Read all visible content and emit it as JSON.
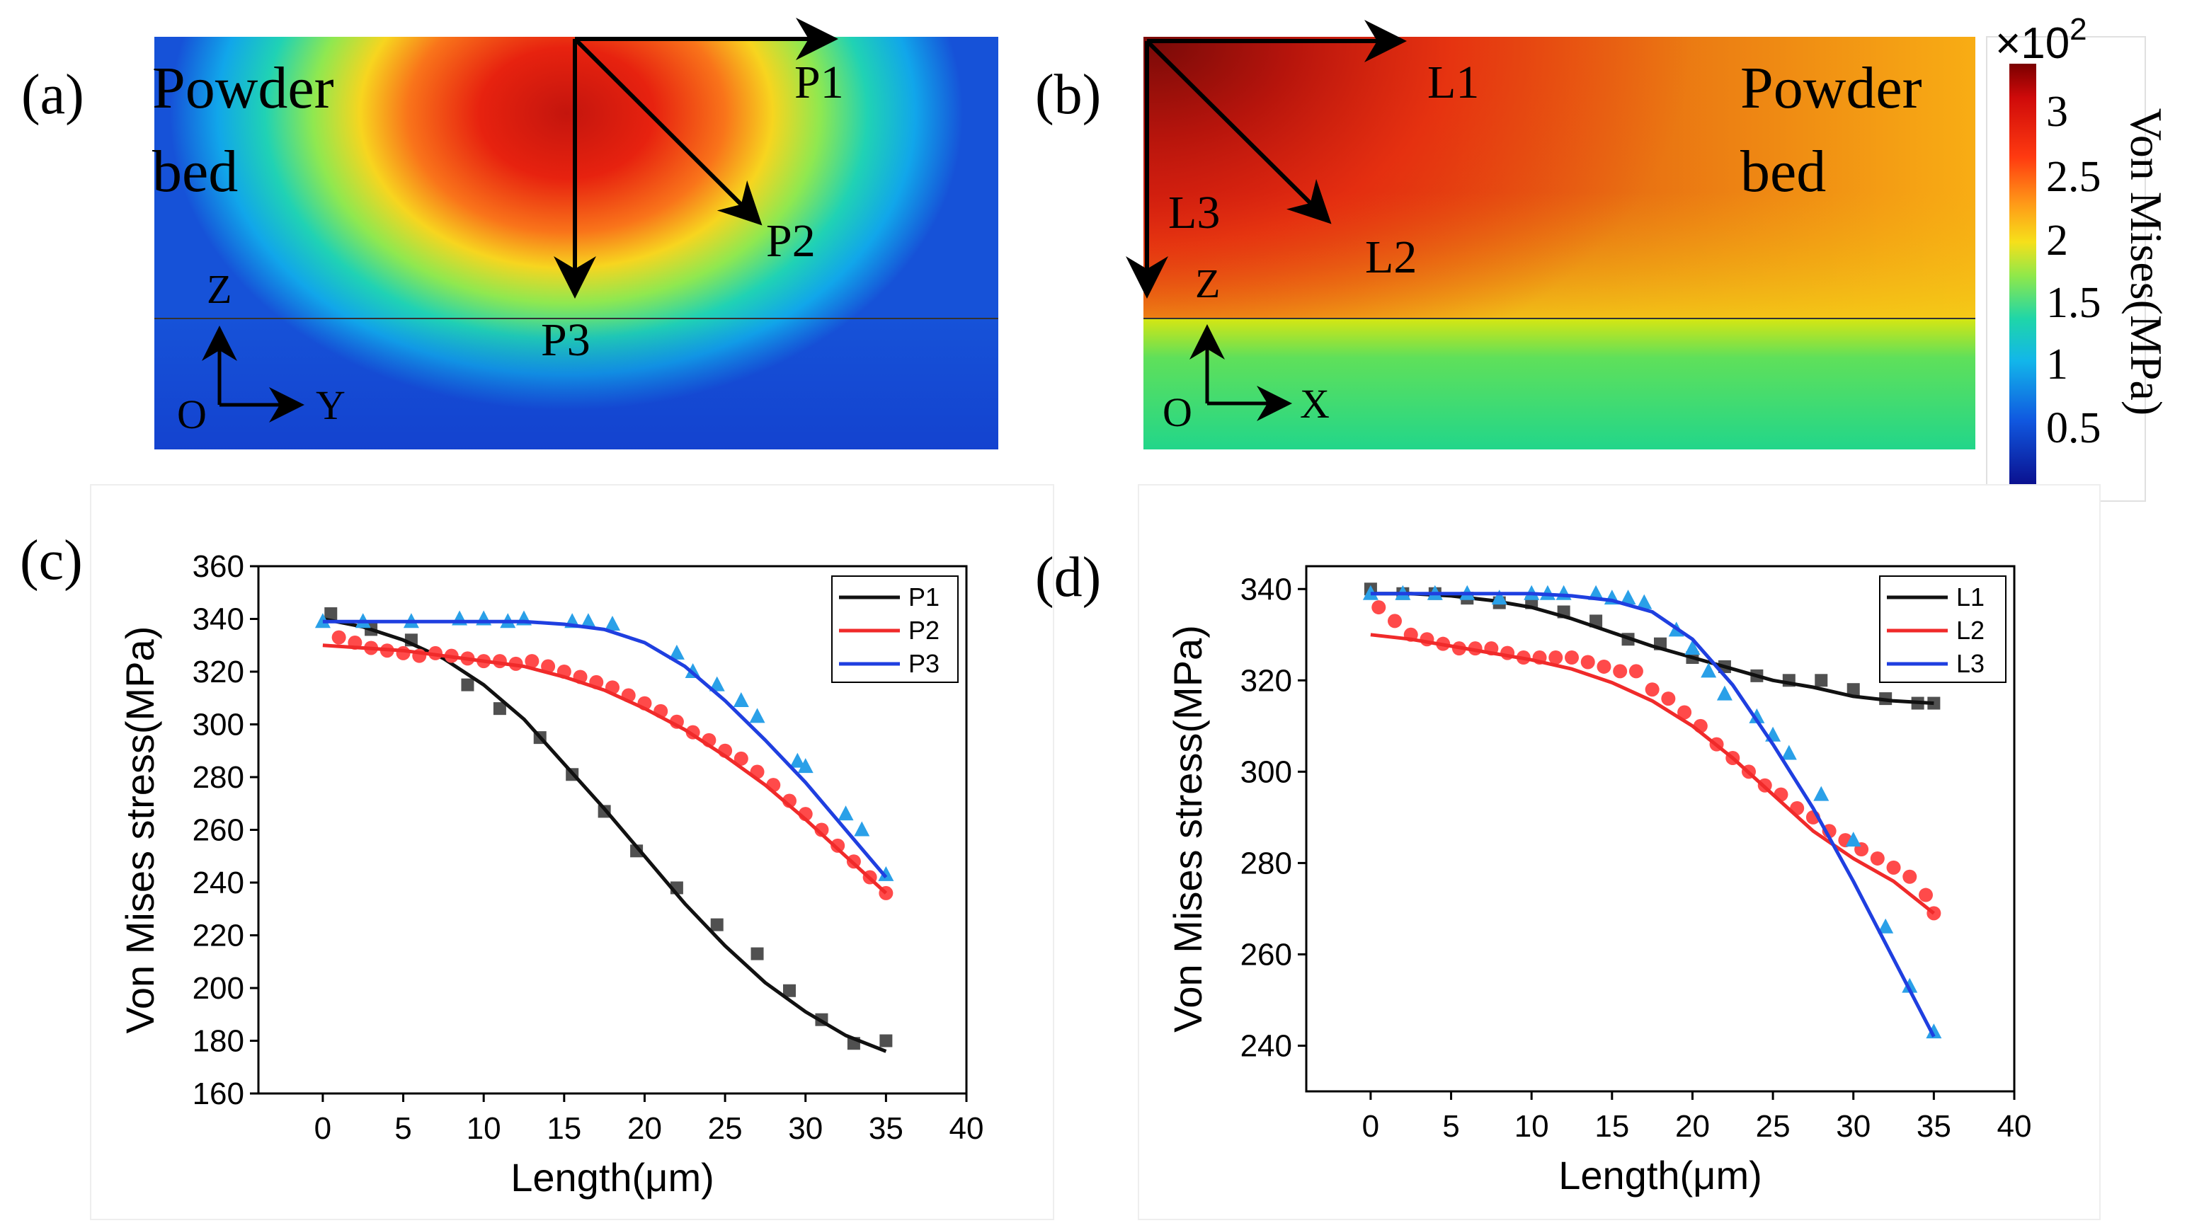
{
  "colors": {
    "series_black": "#111111",
    "series_red": "#f02a2a",
    "series_blue": "#1f3fe0",
    "marker_black": "#505050",
    "marker_red": "#ff4a4a",
    "marker_blue": "#2aa0e8"
  },
  "panel_a": {
    "label": "(a)",
    "powder": "Powder",
    "bed": "bed",
    "axis_z": "Z",
    "axis_h": "Y",
    "origin": "O",
    "path_labels": [
      "P1",
      "P2",
      "P3"
    ]
  },
  "panel_b": {
    "label": "(b)",
    "powder": "Powder",
    "bed": "bed",
    "axis_z": "Z",
    "axis_h": "X",
    "origin": "O",
    "path_labels": [
      "L1",
      "L2",
      "L3"
    ]
  },
  "colorbar": {
    "multiplier": "×10",
    "exponent": "2",
    "title": "Von Mises(MPa)",
    "ticks": [
      "3",
      "2.5",
      "2",
      "1.5",
      "1",
      "0.5"
    ]
  },
  "panel_c": {
    "label": "(c)"
  },
  "panel_d": {
    "label": "(d)"
  },
  "chart_data": [
    {
      "panel": "c",
      "type": "line",
      "xlabel": "Length(μm)",
      "ylabel": "Von Mises stress(MPa)",
      "xlim": [
        -4,
        40
      ],
      "ylim": [
        160,
        360
      ],
      "xticks": [
        0,
        5,
        10,
        15,
        20,
        25,
        30,
        35,
        40
      ],
      "yticks": [
        160,
        180,
        200,
        220,
        240,
        260,
        280,
        300,
        320,
        340,
        360
      ],
      "legend_position": "top-right",
      "series": [
        {
          "name": "P1",
          "color": "#111111",
          "marker": "square",
          "marker_color": "#505050",
          "fit": {
            "x": [
              0,
              2.5,
              5,
              7.5,
              10,
              12.5,
              15,
              17.5,
              20,
              22.5,
              25,
              27.5,
              30,
              32.5,
              35
            ],
            "y": [
              340,
              337,
              332,
              325,
              315,
              302,
              285,
              268,
              250,
              232,
              216,
              202,
              191,
              182,
              176
            ]
          },
          "points": {
            "x": [
              0.5,
              3,
              5.5,
              9,
              11,
              13.5,
              15.5,
              17.5,
              19.5,
              22,
              24.5,
              27,
              29,
              31,
              33,
              35
            ],
            "y": [
              342,
              336,
              332,
              315,
              306,
              295,
              281,
              267,
              252,
              238,
              224,
              213,
              199,
              188,
              179,
              180
            ]
          }
        },
        {
          "name": "P2",
          "color": "#f02a2a",
          "marker": "circle",
          "marker_color": "#ff4a4a",
          "fit": {
            "x": [
              0,
              2.5,
              5,
              7.5,
              10,
              12.5,
              15,
              17.5,
              20,
              22.5,
              25,
              27.5,
              30,
              32.5,
              35
            ],
            "y": [
              330,
              329,
              328,
              326,
              324,
              322,
              318,
              313,
              306,
              298,
              288,
              277,
              264,
              250,
              236
            ]
          },
          "points": {
            "x": [
              1,
              2,
              3,
              4,
              5,
              6,
              7,
              8,
              9,
              10,
              11,
              12,
              13,
              14,
              15,
              16,
              17,
              18,
              19,
              20,
              21,
              22,
              23,
              24,
              25,
              26,
              27,
              28,
              29,
              30,
              31,
              32,
              33,
              34,
              35
            ],
            "y": [
              333,
              331,
              329,
              328,
              327,
              326,
              327,
              326,
              325,
              324,
              324,
              323,
              324,
              322,
              320,
              318,
              316,
              314,
              311,
              308,
              305,
              301,
              297,
              294,
              290,
              287,
              282,
              277,
              271,
              266,
              260,
              254,
              248,
              242,
              236
            ]
          }
        },
        {
          "name": "P3",
          "color": "#1f3fe0",
          "marker": "triangle",
          "marker_color": "#2aa0e8",
          "fit": {
            "x": [
              0,
              2.5,
              5,
              7.5,
              10,
              12.5,
              15,
              17.5,
              20,
              22.5,
              25,
              27.5,
              30,
              32.5,
              35
            ],
            "y": [
              339,
              339,
              339,
              339,
              339,
              339,
              338,
              336,
              331,
              322,
              309,
              294,
              278,
              260,
              242
            ]
          },
          "points": {
            "x": [
              0,
              2.5,
              5.5,
              8.5,
              10,
              11.5,
              12.5,
              15.5,
              16.5,
              18,
              22,
              23,
              24.5,
              26,
              27,
              29.5,
              30,
              32.5,
              33.5,
              35
            ],
            "y": [
              339,
              339,
              339,
              340,
              340,
              339,
              340,
              339,
              339,
              338,
              327,
              320,
              315,
              309,
              303,
              286,
              284,
              266,
              260,
              243
            ]
          }
        }
      ]
    },
    {
      "panel": "d",
      "type": "line",
      "xlabel": "Length(μm)",
      "ylabel": "Von Mises stress(MPa)",
      "xlim": [
        -4,
        40
      ],
      "ylim": [
        230,
        345
      ],
      "xticks": [
        0,
        5,
        10,
        15,
        20,
        25,
        30,
        35,
        40
      ],
      "yticks": [
        240,
        260,
        280,
        300,
        320,
        340
      ],
      "legend_position": "top-right",
      "series": [
        {
          "name": "L1",
          "color": "#111111",
          "marker": "square",
          "marker_color": "#505050",
          "fit": {
            "x": [
              0,
              2.5,
              5,
              7.5,
              10,
              12.5,
              15,
              17.5,
              20,
              22.5,
              25,
              27.5,
              30,
              32.5,
              35
            ],
            "y": [
              339,
              339,
              338.5,
              337.5,
              336,
              333.5,
              330.5,
              327.5,
              325,
              322.5,
              320,
              318.5,
              316.5,
              315.5,
              315
            ]
          },
          "points": {
            "x": [
              0,
              2,
              4,
              6,
              8,
              10,
              12,
              14,
              16,
              18,
              20,
              22,
              24,
              26,
              28,
              30,
              32,
              34,
              35
            ],
            "y": [
              340,
              339,
              339,
              338,
              337,
              337,
              335,
              333,
              329,
              328,
              325,
              323,
              321,
              320,
              320,
              318,
              316,
              315,
              315
            ]
          }
        },
        {
          "name": "L2",
          "color": "#f02a2a",
          "marker": "circle",
          "marker_color": "#ff4a4a",
          "fit": {
            "x": [
              0,
              2.5,
              5,
              7.5,
              10,
              12.5,
              15,
              17.5,
              20,
              22.5,
              25,
              27.5,
              30,
              32.5,
              35
            ],
            "y": [
              330,
              329,
              327.5,
              326,
              324.5,
              322.5,
              319.5,
              315.5,
              310,
              303,
              295,
              287,
              281,
              276,
              269
            ]
          },
          "points": {
            "x": [
              0.5,
              1.5,
              2.5,
              3.5,
              4.5,
              5.5,
              6.5,
              7.5,
              8.5,
              9.5,
              10.5,
              11.5,
              12.5,
              13.5,
              14.5,
              15.5,
              16.5,
              17.5,
              18.5,
              19.5,
              20.5,
              21.5,
              22.5,
              23.5,
              24.5,
              25.5,
              26.5,
              27.5,
              28.5,
              29.5,
              30.5,
              31.5,
              32.5,
              33.5,
              34.5,
              35
            ],
            "y": [
              336,
              333,
              330,
              329,
              328,
              327,
              327,
              327,
              326,
              325,
              325,
              325,
              325,
              324,
              323,
              322,
              322,
              318,
              316,
              313,
              310,
              306,
              303,
              300,
              297,
              295,
              292,
              290,
              287,
              285,
              283,
              281,
              279,
              277,
              273,
              269
            ]
          }
        },
        {
          "name": "L3",
          "color": "#1f3fe0",
          "marker": "triangle",
          "marker_color": "#2aa0e8",
          "fit": {
            "x": [
              0,
              2.5,
              5,
              7.5,
              10,
              12.5,
              15,
              17.5,
              20,
              22.5,
              25,
              27.5,
              30,
              32.5,
              35
            ],
            "y": [
              339,
              339,
              339,
              339,
              339,
              338.5,
              337.5,
              335,
              329,
              319,
              306,
              292,
              276,
              259,
              242
            ]
          },
          "points": {
            "x": [
              0,
              2,
              4,
              6,
              8,
              10,
              11,
              12,
              14,
              15,
              16,
              17,
              19,
              20,
              21,
              22,
              24,
              25,
              26,
              28,
              30,
              32,
              33.5,
              35
            ],
            "y": [
              339,
              339,
              339,
              339,
              338,
              339,
              339,
              339,
              339,
              338,
              338,
              337,
              331,
              327,
              322,
              317,
              312,
              308,
              304,
              295,
              285,
              266,
              253,
              243
            ]
          }
        }
      ]
    }
  ]
}
